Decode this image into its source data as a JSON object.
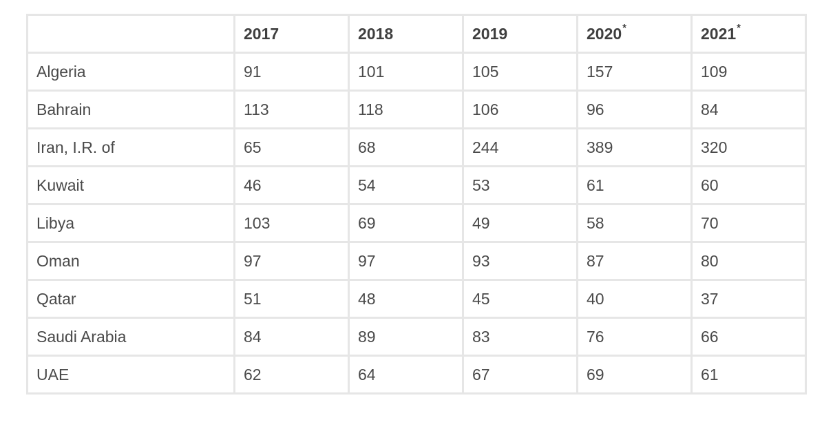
{
  "table": {
    "headers": [
      {
        "label": "",
        "note": ""
      },
      {
        "label": "2017",
        "note": ""
      },
      {
        "label": "2018",
        "note": ""
      },
      {
        "label": "2019",
        "note": ""
      },
      {
        "label": "2020",
        "note": "*"
      },
      {
        "label": "2021",
        "note": "*"
      }
    ],
    "rows": [
      [
        "Algeria",
        "91",
        "101",
        "105",
        "157",
        "109"
      ],
      [
        "Bahrain",
        "113",
        "118",
        "106",
        "96",
        "84"
      ],
      [
        "Iran, I.R. of",
        "65",
        "68",
        "244",
        "389",
        "320"
      ],
      [
        "Kuwait",
        "46",
        "54",
        "53",
        "61",
        "60"
      ],
      [
        "Libya",
        "103",
        "69",
        "49",
        "58",
        "70"
      ],
      [
        "Oman",
        "97",
        "97",
        "93",
        "87",
        "80"
      ],
      [
        "Qatar",
        "51",
        "48",
        "45",
        "40",
        "37"
      ],
      [
        "Saudi Arabia",
        "84",
        "89",
        "83",
        "76",
        "66"
      ],
      [
        "UAE",
        "62",
        "64",
        "67",
        "69",
        "61"
      ]
    ]
  }
}
